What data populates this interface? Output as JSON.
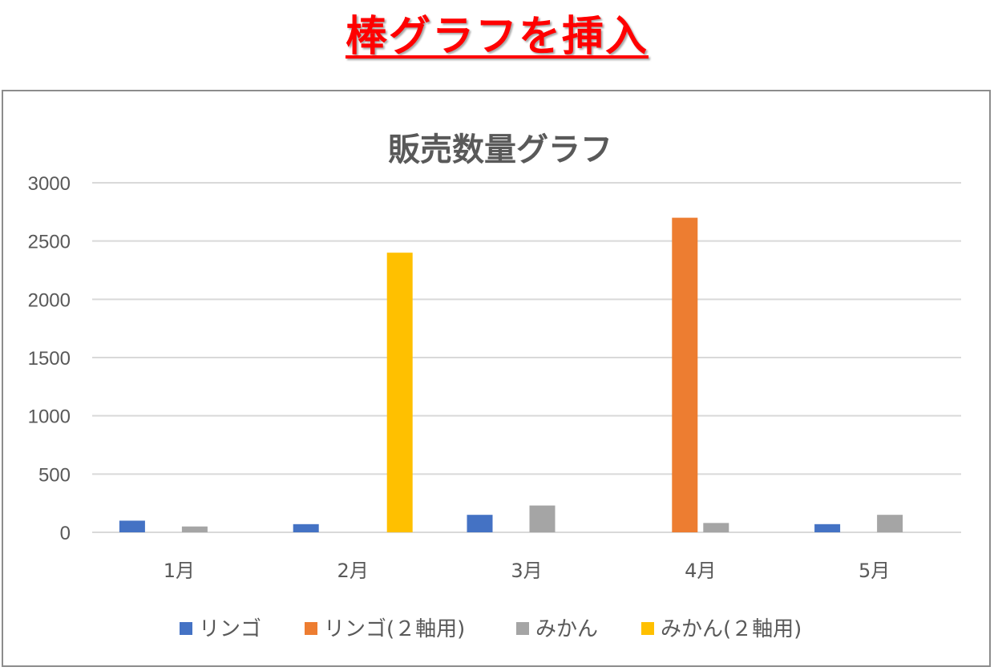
{
  "header": {
    "title": "棒グラフを挿入"
  },
  "colors": {
    "title_red": "#ff0000",
    "gridline": "#d9d9d9",
    "text_gray": "#595959",
    "frame": "#8c8c8c"
  },
  "chart_data": {
    "type": "bar",
    "title": "販売数量グラフ",
    "xlabel": "",
    "ylabel": "",
    "categories": [
      "1月",
      "2月",
      "3月",
      "4月",
      "5月"
    ],
    "ylim": [
      0,
      3000
    ],
    "yticks": [
      0,
      500,
      1000,
      1500,
      2000,
      2500,
      3000
    ],
    "grid": true,
    "legend_position": "bottom",
    "series": [
      {
        "name": "リンゴ",
        "color": "#4472c4",
        "values": [
          100,
          70,
          150,
          0,
          70
        ]
      },
      {
        "name": "リンゴ(２軸用)",
        "color": "#ed7d31",
        "values": [
          0,
          0,
          0,
          2700,
          0
        ]
      },
      {
        "name": "みかん",
        "color": "#a5a5a5",
        "values": [
          50,
          0,
          230,
          80,
          150
        ]
      },
      {
        "name": "みかん(２軸用)",
        "color": "#ffc000",
        "values": [
          0,
          2400,
          0,
          0,
          0
        ]
      }
    ]
  }
}
